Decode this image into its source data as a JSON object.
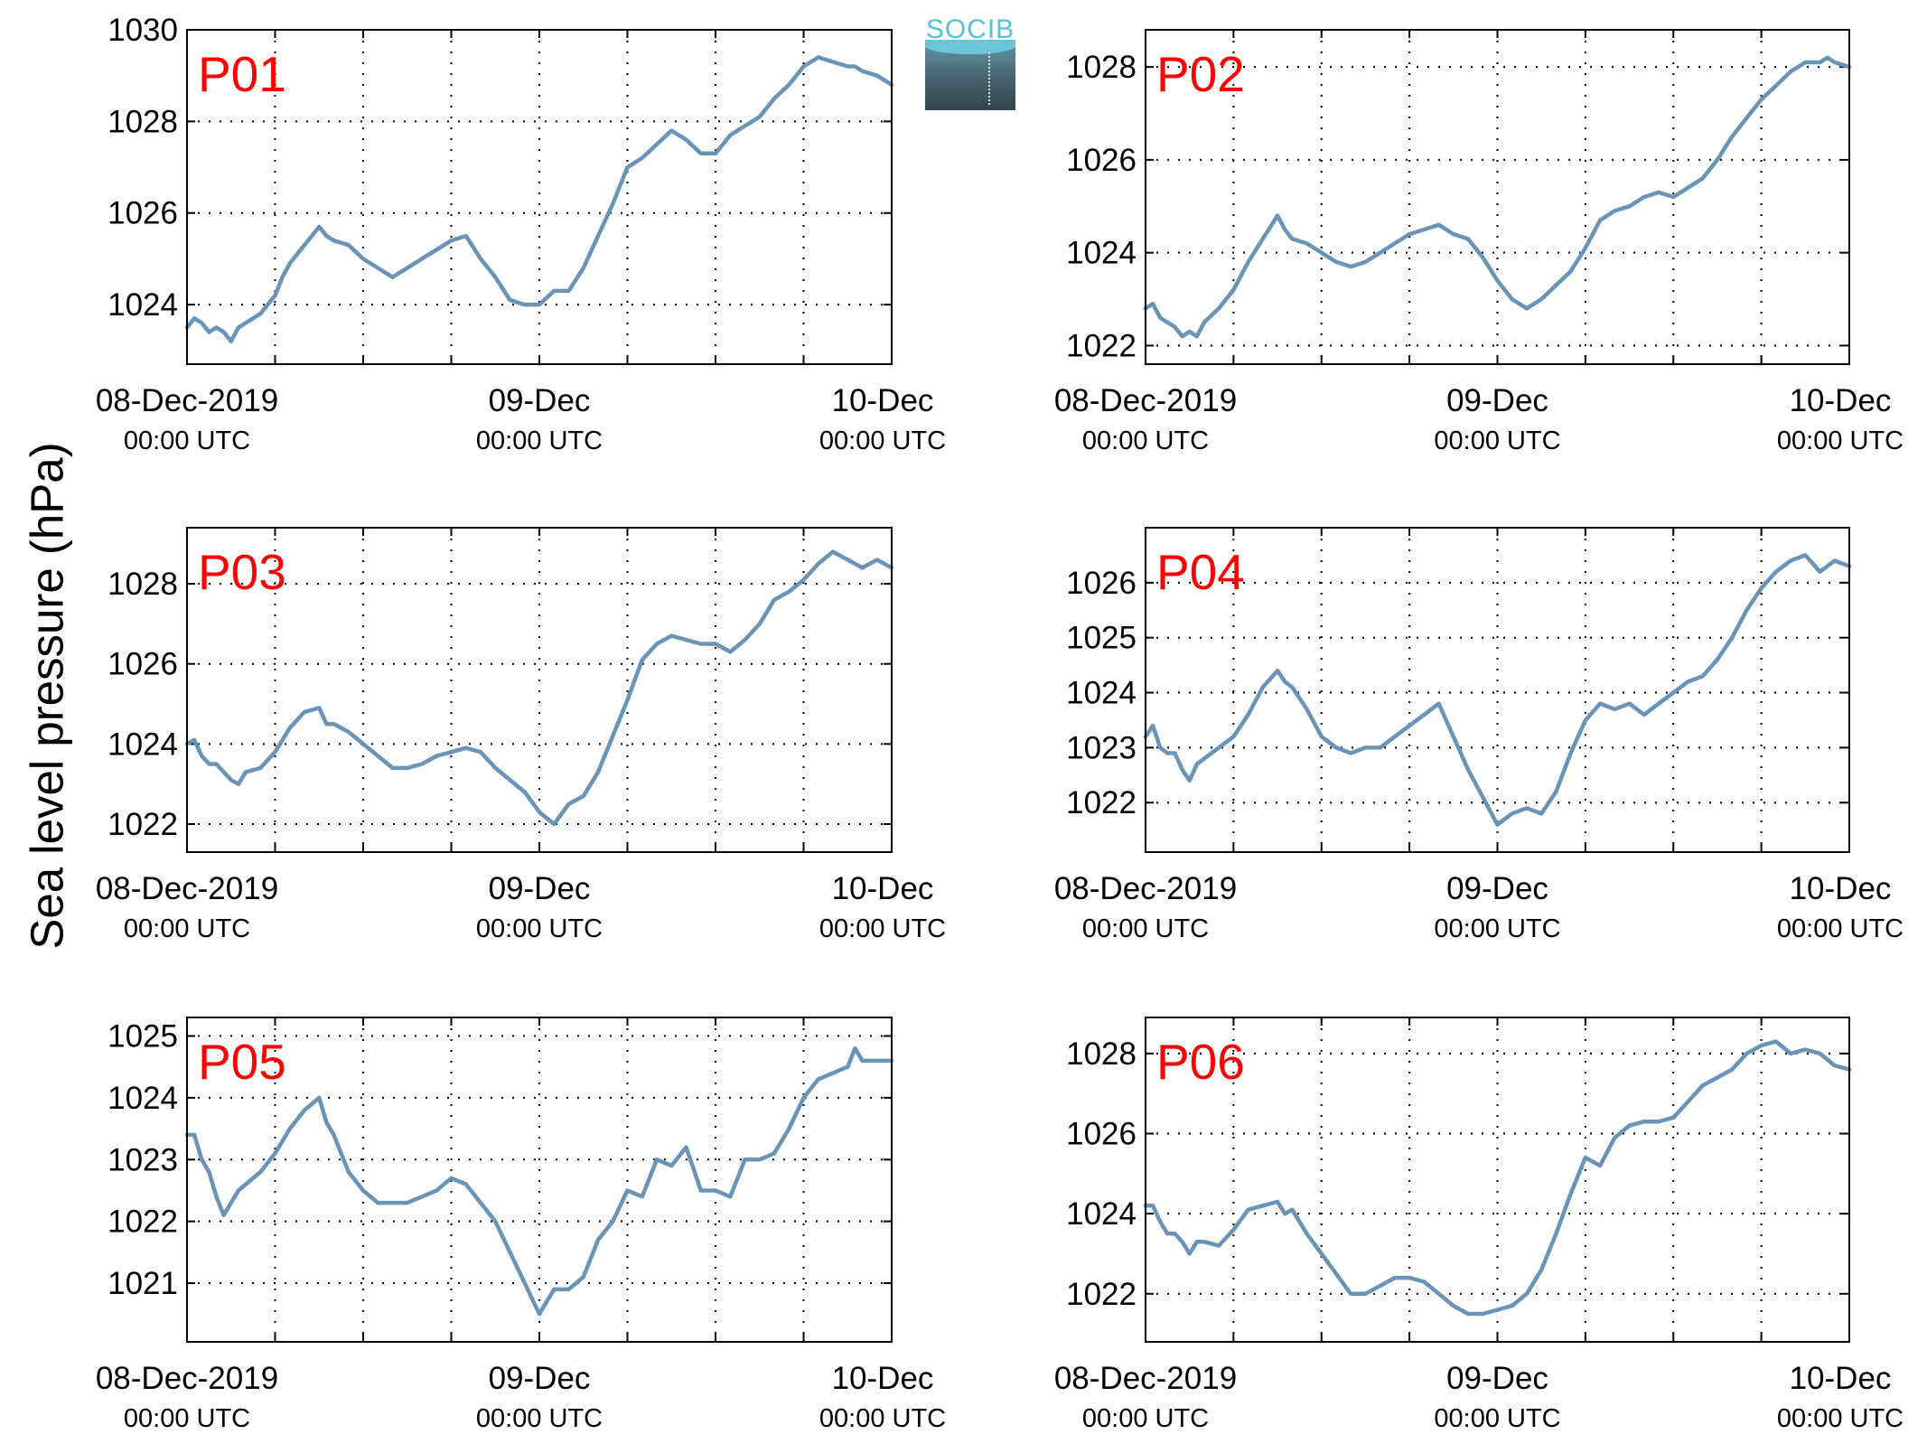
{
  "figure": {
    "ylabel": "Sea level pressure (hPa)",
    "logo_text": "SOCIB"
  },
  "colors": {
    "line": "#6a93b8",
    "label": "#ff0000",
    "grid": "#000000"
  },
  "chart_data": [
    {
      "type": "line",
      "title": "P01",
      "xlabel": "",
      "ylabel": "Sea level pressure (hPa)",
      "xticks": [
        {
          "main": "08-Dec-2019",
          "sub": "00:00 UTC"
        },
        {
          "main": "09-Dec",
          "sub": "00:00 UTC"
        },
        {
          "main": "10-Dec",
          "sub": "00:00 UTC"
        }
      ],
      "xlim": [
        0,
        48
      ],
      "ylim": [
        1022.7,
        1030
      ],
      "yticks": [
        1024,
        1026,
        1028,
        1030
      ],
      "grid": true,
      "series": [
        {
          "x": [
            0,
            0.5,
            1,
            1.5,
            2,
            2.5,
            3,
            3.5,
            4,
            5,
            6,
            6.5,
            7,
            8,
            9,
            9.5,
            10,
            11,
            12,
            13,
            14,
            15,
            16,
            17,
            18,
            19,
            20,
            21,
            22,
            23,
            24,
            25,
            26,
            27,
            28,
            29,
            30,
            31,
            32,
            33,
            33.5,
            34,
            35,
            36,
            37,
            38,
            39,
            40,
            41,
            42,
            43,
            44,
            45,
            45.5,
            46,
            47,
            48
          ],
          "y": [
            1023.5,
            1023.7,
            1023.6,
            1023.4,
            1023.5,
            1023.4,
            1023.2,
            1023.5,
            1023.6,
            1023.8,
            1024.2,
            1024.6,
            1024.9,
            1025.3,
            1025.7,
            1025.5,
            1025.4,
            1025.3,
            1025,
            1024.8,
            1024.6,
            1024.8,
            1025,
            1025.2,
            1025.4,
            1025.5,
            1025,
            1024.6,
            1024.1,
            1024,
            1024,
            1024.3,
            1024.3,
            1024.8,
            1025.5,
            1026.2,
            1027,
            1027.2,
            1027.5,
            1027.8,
            1027.7,
            1027.6,
            1027.3,
            1027.3,
            1027.7,
            1027.9,
            1028.1,
            1028.5,
            1028.8,
            1029.2,
            1029.4,
            1029.3,
            1029.2,
            1029.2,
            1029.1,
            1029,
            1028.8
          ]
        }
      ]
    },
    {
      "type": "line",
      "title": "P02",
      "xlabel": "",
      "ylabel": "Sea level pressure (hPa)",
      "xticks": [
        {
          "main": "08-Dec-2019",
          "sub": "00:00 UTC"
        },
        {
          "main": "09-Dec",
          "sub": "00:00 UTC"
        },
        {
          "main": "10-Dec",
          "sub": "00:00 UTC"
        }
      ],
      "xlim": [
        0,
        48
      ],
      "ylim": [
        1021.6,
        1028.8
      ],
      "yticks": [
        1022,
        1024,
        1026,
        1028
      ],
      "grid": true,
      "series": [
        {
          "x": [
            0,
            0.5,
            1,
            1.5,
            2,
            2.5,
            3,
            3.5,
            4,
            5,
            6,
            7,
            8,
            9,
            9.5,
            10,
            11,
            12,
            13,
            14,
            15,
            16,
            17,
            18,
            19,
            20,
            21,
            22,
            23,
            24,
            25,
            26,
            27,
            28,
            29,
            30,
            31,
            32,
            33,
            34,
            35,
            36,
            37,
            38,
            39,
            40,
            41,
            42,
            43,
            44,
            45,
            46,
            46.5,
            47,
            48
          ],
          "y": [
            1022.8,
            1022.9,
            1022.6,
            1022.5,
            1022.4,
            1022.2,
            1022.3,
            1022.2,
            1022.5,
            1022.8,
            1023.2,
            1023.8,
            1024.3,
            1024.8,
            1024.5,
            1024.3,
            1024.2,
            1024,
            1023.8,
            1023.7,
            1023.8,
            1024,
            1024.2,
            1024.4,
            1024.5,
            1024.6,
            1024.4,
            1024.3,
            1023.9,
            1023.4,
            1023,
            1022.8,
            1023,
            1023.3,
            1023.6,
            1024.1,
            1024.7,
            1024.9,
            1025,
            1025.2,
            1025.3,
            1025.2,
            1025.4,
            1025.6,
            1026,
            1026.5,
            1026.9,
            1027.3,
            1027.6,
            1027.9,
            1028.1,
            1028.1,
            1028.2,
            1028.1,
            1028
          ]
        }
      ]
    },
    {
      "type": "line",
      "title": "P03",
      "xlabel": "",
      "ylabel": "Sea level pressure (hPa)",
      "xticks": [
        {
          "main": "08-Dec-2019",
          "sub": "00:00 UTC"
        },
        {
          "main": "09-Dec",
          "sub": "00:00 UTC"
        },
        {
          "main": "10-Dec",
          "sub": "00:00 UTC"
        }
      ],
      "xlim": [
        0,
        48
      ],
      "ylim": [
        1021.3,
        1029.4
      ],
      "yticks": [
        1022,
        1024,
        1026,
        1028
      ],
      "grid": true,
      "series": [
        {
          "x": [
            0,
            0.5,
            1,
            1.5,
            2,
            2.5,
            3,
            3.5,
            4,
            5,
            6,
            7,
            8,
            9,
            9.5,
            10,
            11,
            12,
            13,
            14,
            15,
            16,
            17,
            18,
            19,
            20,
            21,
            22,
            23,
            24,
            25,
            26,
            27,
            28,
            29,
            30,
            31,
            32,
            33,
            34,
            35,
            36,
            37,
            38,
            39,
            40,
            41,
            42,
            43,
            44,
            45,
            46,
            47,
            48
          ],
          "y": [
            1024,
            1024.1,
            1023.7,
            1023.5,
            1023.5,
            1023.3,
            1023.1,
            1023,
            1023.3,
            1023.4,
            1023.8,
            1024.4,
            1024.8,
            1024.9,
            1024.5,
            1024.5,
            1024.3,
            1024,
            1023.7,
            1023.4,
            1023.4,
            1023.5,
            1023.7,
            1023.8,
            1023.9,
            1023.8,
            1023.4,
            1023.1,
            1022.8,
            1022.3,
            1022,
            1022.5,
            1022.7,
            1023.3,
            1024.2,
            1025.1,
            1026.1,
            1026.5,
            1026.7,
            1026.6,
            1026.5,
            1026.5,
            1026.3,
            1026.6,
            1027,
            1027.6,
            1027.8,
            1028.1,
            1028.5,
            1028.8,
            1028.6,
            1028.4,
            1028.6,
            1028.4
          ]
        }
      ]
    },
    {
      "type": "line",
      "title": "P04",
      "xlabel": "",
      "ylabel": "Sea level pressure (hPa)",
      "xticks": [
        {
          "main": "08-Dec-2019",
          "sub": "00:00 UTC"
        },
        {
          "main": "09-Dec",
          "sub": "00:00 UTC"
        },
        {
          "main": "10-Dec",
          "sub": "00:00 UTC"
        }
      ],
      "xlim": [
        0,
        48
      ],
      "ylim": [
        1021.1,
        1027
      ],
      "yticks": [
        1022,
        1023,
        1024,
        1025,
        1026
      ],
      "grid": true,
      "series": [
        {
          "x": [
            0,
            0.5,
            1,
            1.5,
            2,
            2.5,
            3,
            3.5,
            4,
            5,
            6,
            7,
            8,
            9,
            9.5,
            10,
            11,
            12,
            13,
            14,
            15,
            16,
            17,
            18,
            19,
            20,
            21,
            22,
            23,
            24,
            25,
            26,
            27,
            28,
            29,
            30,
            31,
            32,
            33,
            34,
            35,
            36,
            37,
            38,
            39,
            40,
            41,
            42,
            43,
            44,
            45,
            46,
            47,
            48
          ],
          "y": [
            1023.2,
            1023.4,
            1023,
            1022.9,
            1022.9,
            1022.6,
            1022.4,
            1022.7,
            1022.8,
            1023,
            1023.2,
            1023.6,
            1024.1,
            1024.4,
            1024.2,
            1024.1,
            1023.7,
            1023.2,
            1023,
            1022.9,
            1023,
            1023,
            1023.2,
            1023.4,
            1023.6,
            1023.8,
            1023.2,
            1022.6,
            1022.1,
            1021.6,
            1021.8,
            1021.9,
            1021.8,
            1022.2,
            1022.9,
            1023.5,
            1023.8,
            1023.7,
            1023.8,
            1023.6,
            1023.8,
            1024,
            1024.2,
            1024.3,
            1024.6,
            1025,
            1025.5,
            1025.9,
            1026.2,
            1026.4,
            1026.5,
            1026.2,
            1026.4,
            1026.3
          ]
        }
      ]
    },
    {
      "type": "line",
      "title": "P05",
      "xlabel": "",
      "ylabel": "Sea level pressure (hPa)",
      "xticks": [
        {
          "main": "08-Dec-2019",
          "sub": "00:00 UTC"
        },
        {
          "main": "09-Dec",
          "sub": "00:00 UTC"
        },
        {
          "main": "10-Dec",
          "sub": "00:00 UTC"
        }
      ],
      "xlim": [
        0,
        48
      ],
      "ylim": [
        1020.05,
        1025.3
      ],
      "yticks": [
        1021,
        1022,
        1023,
        1024,
        1025
      ],
      "grid": true,
      "series": [
        {
          "x": [
            0,
            0.5,
            1,
            1.5,
            2,
            2.5,
            3,
            3.5,
            4,
            5,
            6,
            7,
            8,
            9,
            9.5,
            10,
            11,
            12,
            13,
            14,
            15,
            16,
            17,
            18,
            19,
            20,
            21,
            22,
            23,
            24,
            25,
            26,
            27,
            28,
            29,
            30,
            31,
            32,
            33,
            34,
            35,
            36,
            37,
            38,
            39,
            40,
            41,
            42,
            43,
            44,
            45,
            45.5,
            46,
            47,
            48
          ],
          "y": [
            1023.4,
            1023.4,
            1023,
            1022.8,
            1022.4,
            1022.1,
            1022.3,
            1022.5,
            1022.6,
            1022.8,
            1023.1,
            1023.5,
            1023.8,
            1024,
            1023.6,
            1023.4,
            1022.8,
            1022.5,
            1022.3,
            1022.3,
            1022.3,
            1022.4,
            1022.5,
            1022.7,
            1022.6,
            1022.3,
            1022,
            1021.5,
            1021,
            1020.5,
            1020.9,
            1020.9,
            1021.1,
            1021.7,
            1022,
            1022.5,
            1022.4,
            1023,
            1022.9,
            1023.2,
            1022.5,
            1022.5,
            1022.4,
            1023,
            1023,
            1023.1,
            1023.5,
            1024,
            1024.3,
            1024.4,
            1024.5,
            1024.8,
            1024.6,
            1024.6,
            1024.6
          ]
        }
      ]
    },
    {
      "type": "line",
      "title": "P06",
      "xlabel": "",
      "ylabel": "Sea level pressure (hPa)",
      "xticks": [
        {
          "main": "08-Dec-2019",
          "sub": "00:00 UTC"
        },
        {
          "main": "09-Dec",
          "sub": "00:00 UTC"
        },
        {
          "main": "10-Dec",
          "sub": "00:00 UTC"
        }
      ],
      "xlim": [
        0,
        48
      ],
      "ylim": [
        1020.8,
        1028.9
      ],
      "yticks": [
        1022,
        1024,
        1026,
        1028
      ],
      "grid": true,
      "series": [
        {
          "x": [
            0,
            0.5,
            1,
            1.5,
            2,
            2.5,
            3,
            3.5,
            4,
            5,
            6,
            7,
            8,
            9,
            9.5,
            10,
            11,
            12,
            13,
            14,
            15,
            16,
            17,
            18,
            19,
            20,
            21,
            22,
            23,
            24,
            25,
            26,
            27,
            28,
            29,
            30,
            31,
            32,
            33,
            34,
            35,
            36,
            37,
            38,
            39,
            40,
            41,
            42,
            43,
            44,
            45,
            46,
            47,
            48
          ],
          "y": [
            1024.2,
            1024.2,
            1023.8,
            1023.5,
            1023.5,
            1023.3,
            1023,
            1023.3,
            1023.3,
            1023.2,
            1023.6,
            1024.1,
            1024.2,
            1024.3,
            1024,
            1024.1,
            1023.5,
            1023,
            1022.5,
            1022,
            1022,
            1022.2,
            1022.4,
            1022.4,
            1022.3,
            1022,
            1021.7,
            1021.5,
            1021.5,
            1021.6,
            1021.7,
            1022,
            1022.6,
            1023.5,
            1024.5,
            1025.4,
            1025.2,
            1025.9,
            1026.2,
            1026.3,
            1026.3,
            1026.4,
            1026.8,
            1027.2,
            1027.4,
            1027.6,
            1028,
            1028.2,
            1028.3,
            1028,
            1028.1,
            1028,
            1027.7,
            1027.6
          ]
        }
      ]
    }
  ]
}
